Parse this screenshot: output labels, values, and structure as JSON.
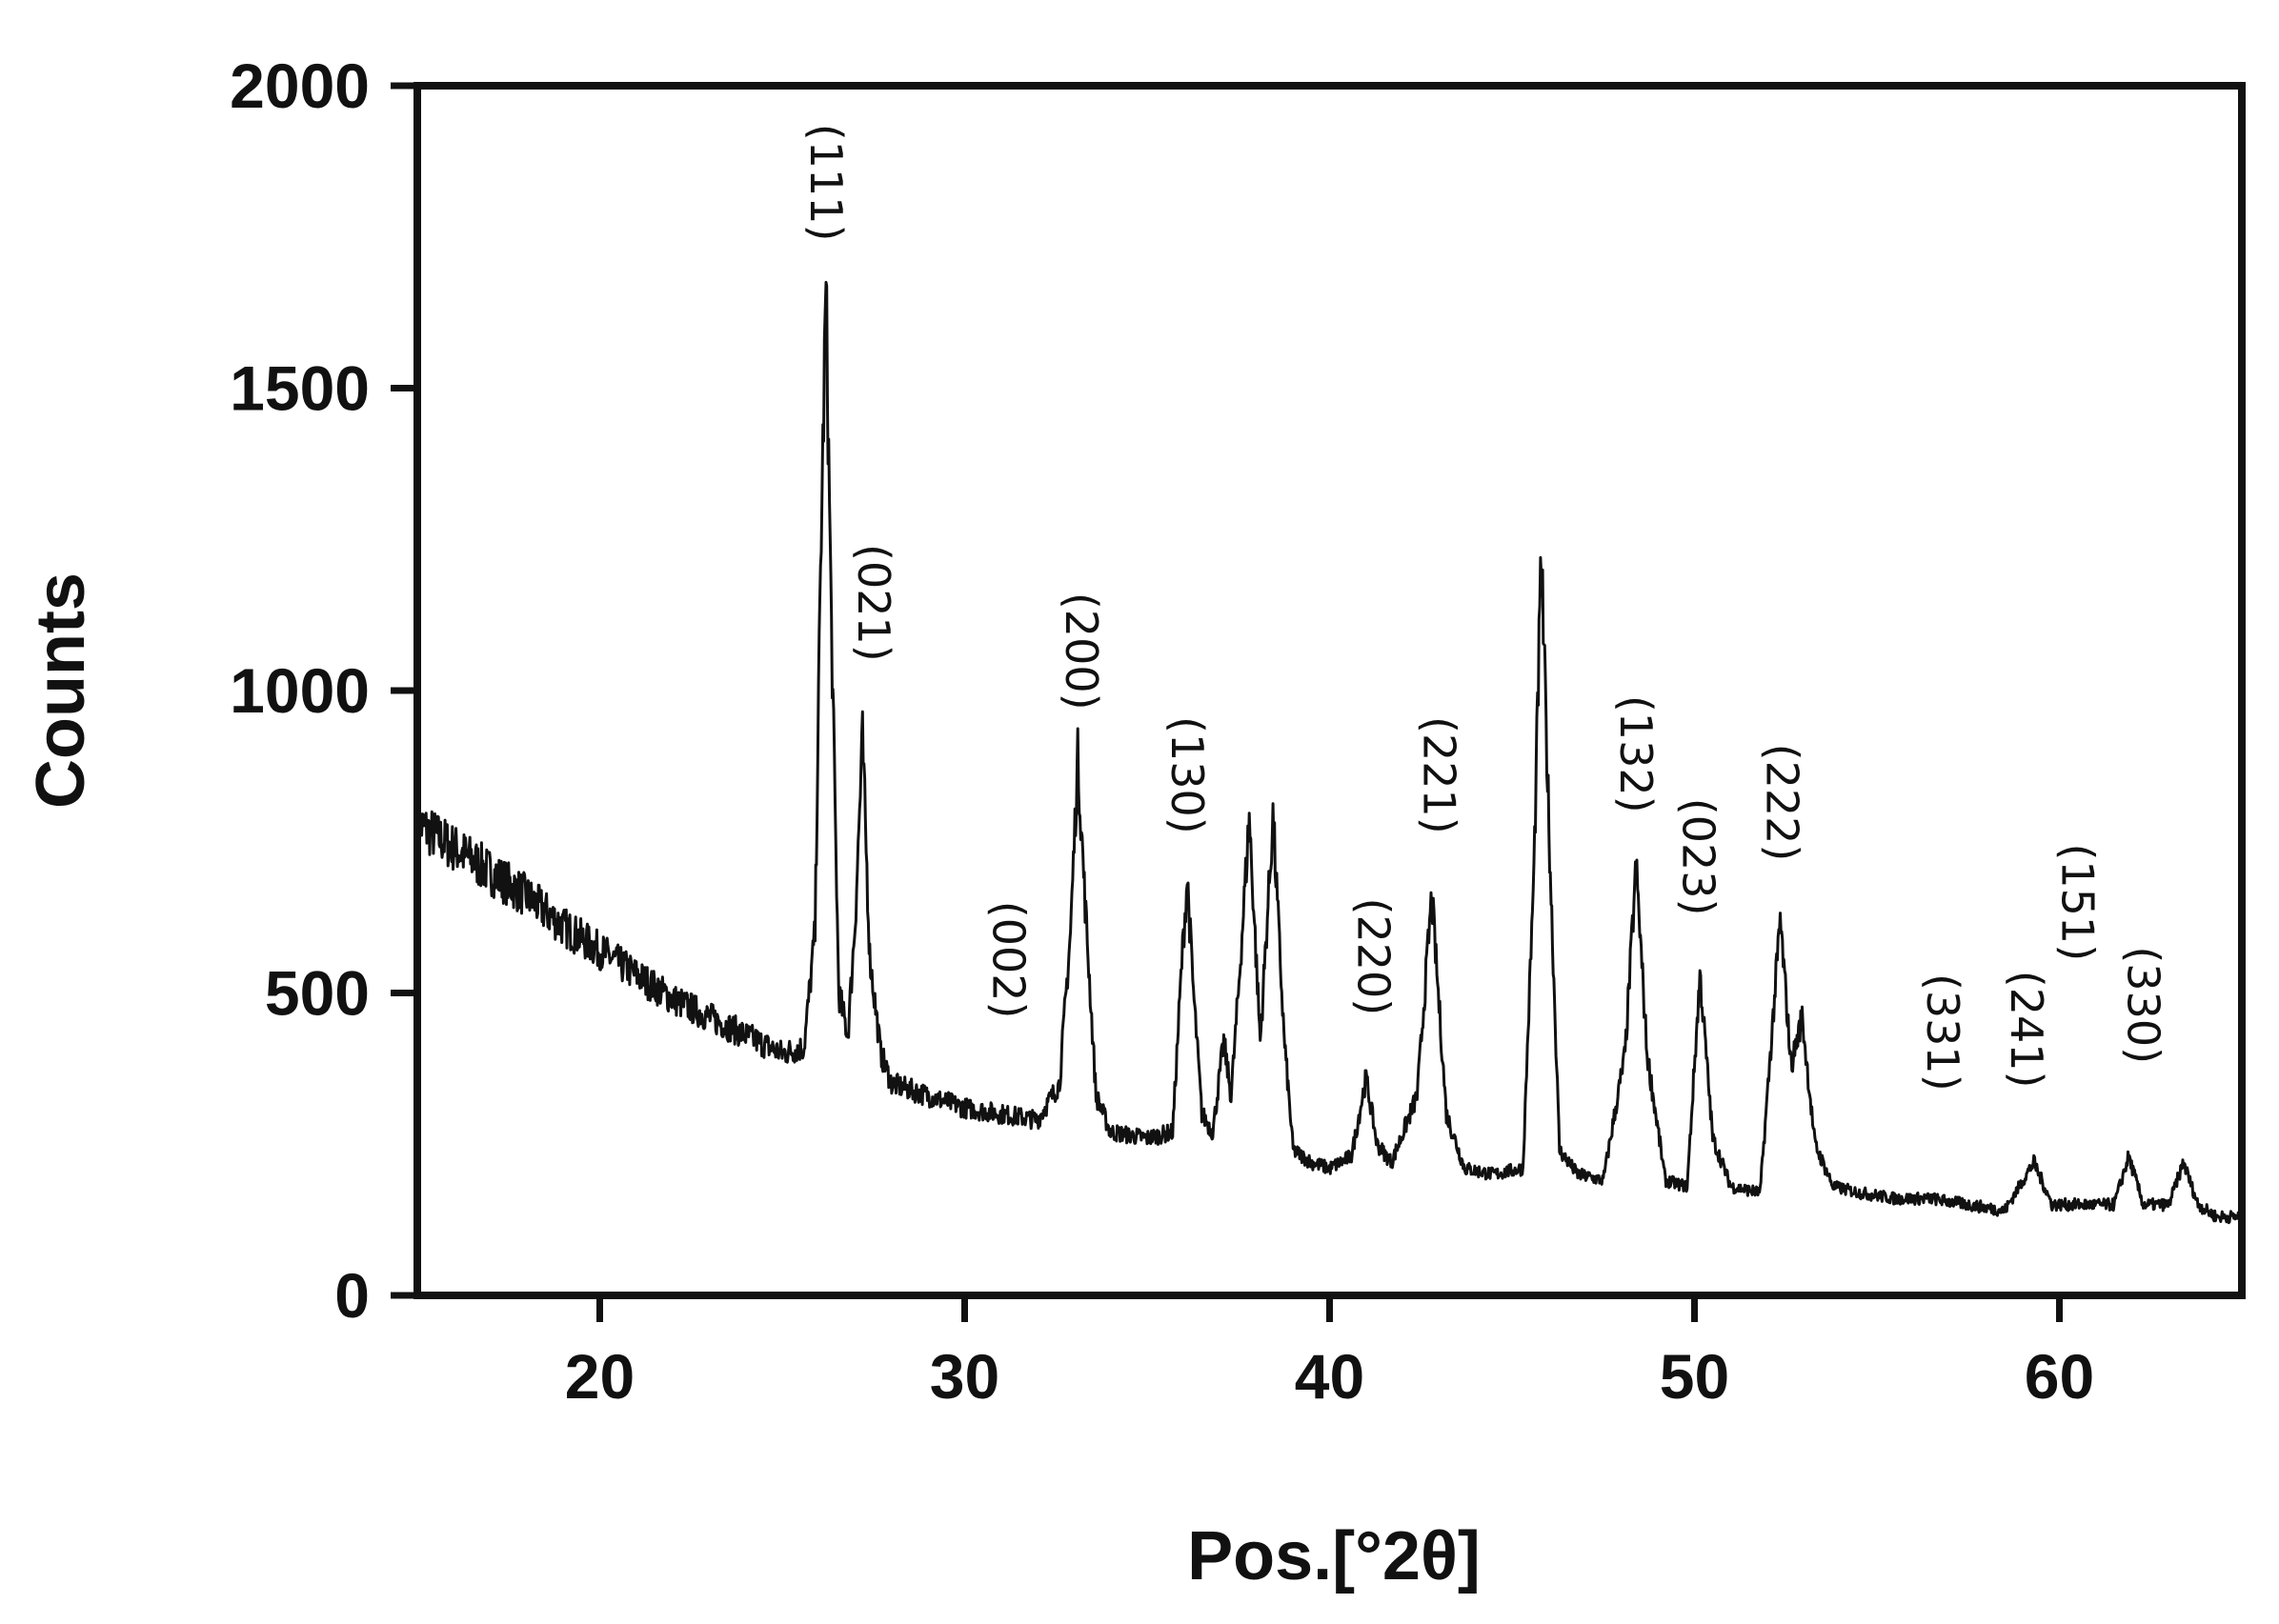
{
  "chart_data": {
    "type": "line",
    "title": "",
    "xlabel": "Pos.[°2θ]",
    "ylabel": "Counts",
    "xlim": [
      15,
      65
    ],
    "ylim": [
      0,
      2000
    ],
    "x_ticks": [
      20,
      30,
      40,
      50,
      60
    ],
    "y_ticks": [
      0,
      500,
      1000,
      1500,
      2000
    ],
    "grid": false,
    "line_color": "#111111",
    "series": [
      {
        "x": [
          15.0,
          16.0,
          17.0,
          18.0,
          19.0,
          20.0,
          21.0,
          22.0,
          23.0,
          24.0,
          25.0,
          25.6,
          25.9,
          26.05,
          26.2,
          26.35,
          26.55,
          26.8,
          27.0,
          27.2,
          27.4,
          27.7,
          28.0,
          29.0,
          30.0,
          31.0,
          32.0,
          32.6,
          32.9,
          33.1,
          33.3,
          33.6,
          34.0,
          35.0,
          35.7,
          35.95,
          36.1,
          36.25,
          36.5,
          36.8,
          37.1,
          37.3,
          37.5,
          37.8,
          38.1,
          38.45,
          38.75,
          39.0,
          39.5,
          40.0,
          40.6,
          41.0,
          41.3,
          41.7,
          42.4,
          42.8,
          43.2,
          43.7,
          44.5,
          45.3,
          45.6,
          45.8,
          46.05,
          46.3,
          46.8,
          47.5,
          48.1,
          48.4,
          48.7,
          49.2,
          49.8,
          50.15,
          50.5,
          51.0,
          51.8,
          52.35,
          52.65,
          52.95,
          53.3,
          53.8,
          54.5,
          55.5,
          56.5,
          57.5,
          58.5,
          59.3,
          59.8,
          60.5,
          61.5,
          61.9,
          62.3,
          63.0,
          63.4,
          63.8,
          64.3,
          65.0
        ],
        "y": [
          780,
          740,
          700,
          660,
          610,
          570,
          530,
          490,
          460,
          430,
          400,
          410,
          600,
          1200,
          1660,
          1100,
          500,
          430,
          620,
          920,
          560,
          400,
          350,
          330,
          310,
          300,
          290,
          350,
          600,
          890,
          650,
          330,
          270,
          260,
          270,
          550,
          690,
          520,
          300,
          270,
          420,
          330,
          500,
          790,
          420,
          790,
          430,
          240,
          220,
          210,
          230,
          360,
          250,
          220,
          330,
          660,
          300,
          210,
          200,
          210,
          700,
          1220,
          700,
          240,
          200,
          190,
          400,
          710,
          400,
          190,
          180,
          530,
          260,
          180,
          170,
          620,
          380,
          460,
          250,
          180,
          170,
          160,
          160,
          150,
          140,
          220,
          150,
          150,
          150,
          230,
          150,
          150,
          220,
          150,
          130,
          130
        ]
      }
    ],
    "annotations": [
      {
        "text": "(111)",
        "x": 26.2,
        "y": 1840
      },
      {
        "text": "(021)",
        "x": 27.5,
        "y": 1145
      },
      {
        "text": "(002)",
        "x": 31.2,
        "y": 555
      },
      {
        "text": "(200)",
        "x": 33.2,
        "y": 1065
      },
      {
        "text": "(130)",
        "x": 36.1,
        "y": 860
      },
      {
        "text": "(220)",
        "x": 41.2,
        "y": 560
      },
      {
        "text": "(221)",
        "x": 43.0,
        "y": 860
      },
      {
        "text": "(132)",
        "x": 48.4,
        "y": 895
      },
      {
        "text": "(023)",
        "x": 50.1,
        "y": 725
      },
      {
        "text": "(222)",
        "x": 52.4,
        "y": 815
      },
      {
        "text": "(331)",
        "x": 56.8,
        "y": 435
      },
      {
        "text": "(151)",
        "x": 60.5,
        "y": 650
      },
      {
        "text": "(241)",
        "x": 59.1,
        "y": 440
      },
      {
        "text": "(330)",
        "x": 62.3,
        "y": 480
      }
    ]
  }
}
